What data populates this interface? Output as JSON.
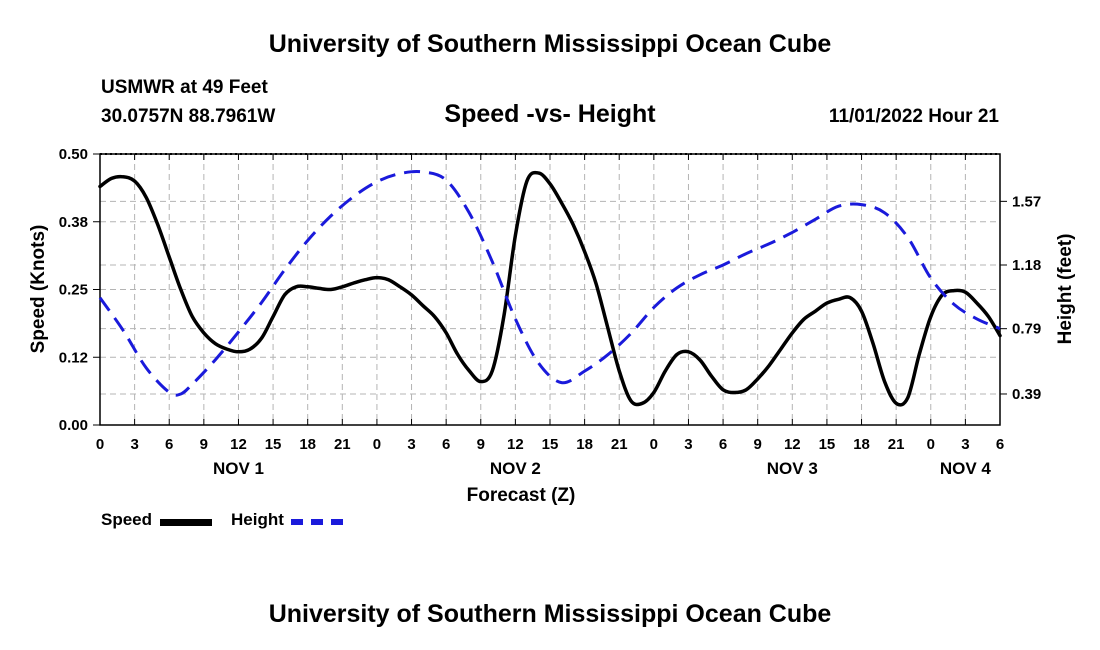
{
  "page": {
    "title_top": "University of Southern Mississippi Ocean Cube",
    "title_bottom": "University of Southern Mississippi Ocean Cube",
    "station": "USMWR at 49 Feet",
    "coordinates": "30.0757N  88.7961W",
    "datetime": "11/01/2022 Hour 21"
  },
  "chart_data": {
    "type": "line",
    "title": "Speed -vs- Height",
    "xlabel": "Forecast (Z)",
    "ylabel_left": "Speed (Knots)",
    "ylabel_right": "Height (feet)",
    "x_unit": "hours from 0Z Nov 1",
    "xlim": [
      0,
      78
    ],
    "x_ticks": [
      0,
      3,
      6,
      9,
      12,
      15,
      18,
      21,
      24,
      27,
      30,
      33,
      36,
      39,
      42,
      45,
      48,
      51,
      54,
      57,
      60,
      63,
      66,
      69,
      72,
      75,
      78
    ],
    "x_tick_labels": [
      "0",
      "3",
      "6",
      "9",
      "12",
      "15",
      "18",
      "21",
      "0",
      "3",
      "6",
      "9",
      "12",
      "15",
      "18",
      "21",
      "0",
      "3",
      "6",
      "9",
      "12",
      "15",
      "18",
      "21",
      "0",
      "3",
      "6"
    ],
    "day_labels": [
      {
        "label": "NOV 1",
        "x": 12
      },
      {
        "label": "NOV 2",
        "x": 36
      },
      {
        "label": "NOV 3",
        "x": 60
      },
      {
        "label": "NOV 4",
        "x": 75
      }
    ],
    "left_axis": {
      "ylim": [
        0,
        0.5
      ],
      "ticks": [
        0.0,
        0.125,
        0.25,
        0.375,
        0.5
      ],
      "tick_labels": [
        "0.00",
        "0.12",
        "0.25",
        "0.38",
        "0.50"
      ]
    },
    "right_axis": {
      "ylim": [
        0.2,
        1.86
      ],
      "ticks": [
        0.39,
        0.79,
        1.18,
        1.57
      ],
      "tick_labels": [
        "0.39",
        "0.79",
        "1.18",
        "1.57"
      ]
    },
    "grid": true,
    "legend": {
      "position": "bottom-left",
      "entries": [
        "Speed",
        "Height"
      ]
    },
    "series": [
      {
        "name": "Speed",
        "axis": "left",
        "color": "#000000",
        "style": "solid",
        "x": [
          0,
          1,
          2,
          3,
          4,
          5,
          6,
          7,
          8,
          9,
          10,
          11,
          12,
          13,
          14,
          15,
          16,
          17,
          18,
          19,
          20,
          21,
          22,
          23,
          24,
          25,
          26,
          27,
          28,
          29,
          30,
          31,
          32,
          33,
          34,
          35,
          36,
          37,
          38,
          39,
          40,
          41,
          42,
          43,
          44,
          45,
          46,
          47,
          48,
          49,
          50,
          51,
          52,
          53,
          54,
          55,
          56,
          57,
          58,
          59,
          60,
          61,
          62,
          63,
          64,
          65,
          66,
          67,
          68,
          69,
          70,
          71,
          72,
          73,
          74,
          75,
          76,
          77,
          78
        ],
        "values": [
          0.44,
          0.455,
          0.458,
          0.45,
          0.42,
          0.37,
          0.31,
          0.25,
          0.2,
          0.17,
          0.15,
          0.14,
          0.135,
          0.14,
          0.16,
          0.2,
          0.24,
          0.255,
          0.255,
          0.252,
          0.25,
          0.255,
          0.262,
          0.268,
          0.272,
          0.268,
          0.255,
          0.24,
          0.22,
          0.2,
          0.17,
          0.13,
          0.1,
          0.08,
          0.1,
          0.2,
          0.35,
          0.45,
          0.465,
          0.445,
          0.41,
          0.37,
          0.32,
          0.26,
          0.18,
          0.1,
          0.045,
          0.04,
          0.06,
          0.1,
          0.13,
          0.135,
          0.12,
          0.09,
          0.065,
          0.06,
          0.065,
          0.085,
          0.11,
          0.14,
          0.17,
          0.195,
          0.21,
          0.225,
          0.232,
          0.235,
          0.21,
          0.15,
          0.08,
          0.04,
          0.05,
          0.13,
          0.2,
          0.24,
          0.248,
          0.245,
          0.225,
          0.2,
          0.165
        ]
      },
      {
        "name": "Height",
        "axis": "right",
        "color": "#1a1adb",
        "style": "dashed",
        "x": [
          0,
          2,
          4,
          6,
          7,
          8,
          10,
          12,
          14,
          16,
          18,
          20,
          22,
          24,
          26,
          28,
          30,
          32,
          34,
          36,
          38,
          40,
          42,
          44,
          46,
          48,
          50,
          52,
          54,
          56,
          58,
          60,
          62,
          64,
          66,
          68,
          70,
          72,
          74,
          76,
          78
        ],
        "values": [
          0.98,
          0.78,
          0.55,
          0.4,
          0.39,
          0.45,
          0.6,
          0.77,
          0.95,
          1.15,
          1.33,
          1.48,
          1.6,
          1.69,
          1.74,
          1.75,
          1.7,
          1.5,
          1.2,
          0.85,
          0.58,
          0.46,
          0.53,
          0.63,
          0.76,
          0.92,
          1.04,
          1.12,
          1.18,
          1.25,
          1.31,
          1.38,
          1.46,
          1.54,
          1.55,
          1.5,
          1.35,
          1.1,
          0.94,
          0.85,
          0.79
        ]
      }
    ]
  }
}
